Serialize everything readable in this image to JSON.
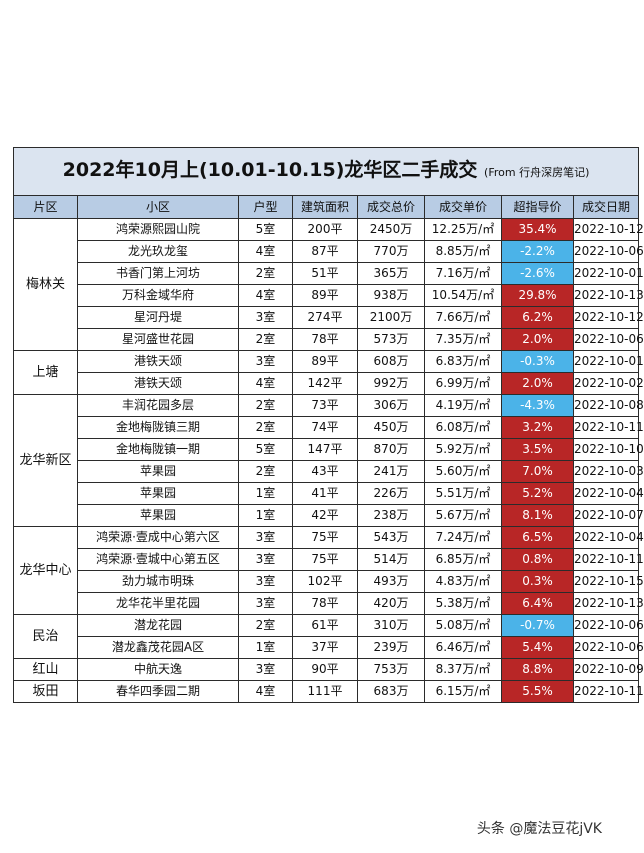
{
  "title": {
    "main": "2022年10月上(10.01-10.15)龙华区二手成交",
    "source": "(From 行舟深房笔记)"
  },
  "headers": [
    "片区",
    "小区",
    "户型",
    "建筑面积",
    "成交总价",
    "成交单价",
    "超指导价",
    "成交日期"
  ],
  "colors": {
    "positive": "#b82626",
    "negative": "#4bb3e8",
    "header_bg": "#b8cce4",
    "title_bg": "#dbe4f0"
  },
  "groups": [
    {
      "district": "梅林关",
      "rows": [
        {
          "community": "鸿荣源熙园山院",
          "layout": "5室",
          "area": "200平",
          "total": "2450万",
          "unit": "12.25万/㎡",
          "ratio": "35.4%",
          "date": "2022-10-12"
        },
        {
          "community": "龙光玖龙玺",
          "layout": "4室",
          "area": "87平",
          "total": "770万",
          "unit": "8.85万/㎡",
          "ratio": "-2.2%",
          "date": "2022-10-06"
        },
        {
          "community": "书香门第上河坊",
          "layout": "2室",
          "area": "51平",
          "total": "365万",
          "unit": "7.16万/㎡",
          "ratio": "-2.6%",
          "date": "2022-10-01"
        },
        {
          "community": "万科金域华府",
          "layout": "4室",
          "area": "89平",
          "total": "938万",
          "unit": "10.54万/㎡",
          "ratio": "29.8%",
          "date": "2022-10-13"
        },
        {
          "community": "星河丹堤",
          "layout": "3室",
          "area": "274平",
          "total": "2100万",
          "unit": "7.66万/㎡",
          "ratio": "6.2%",
          "date": "2022-10-12"
        },
        {
          "community": "星河盛世花园",
          "layout": "2室",
          "area": "78平",
          "total": "573万",
          "unit": "7.35万/㎡",
          "ratio": "2.0%",
          "date": "2022-10-06"
        }
      ]
    },
    {
      "district": "上塘",
      "rows": [
        {
          "community": "港铁天颂",
          "layout": "3室",
          "area": "89平",
          "total": "608万",
          "unit": "6.83万/㎡",
          "ratio": "-0.3%",
          "date": "2022-10-01"
        },
        {
          "community": "港铁天颂",
          "layout": "4室",
          "area": "142平",
          "total": "992万",
          "unit": "6.99万/㎡",
          "ratio": "2.0%",
          "date": "2022-10-02"
        }
      ]
    },
    {
      "district": "龙华新区",
      "rows": [
        {
          "community": "丰润花园多层",
          "layout": "2室",
          "area": "73平",
          "total": "306万",
          "unit": "4.19万/㎡",
          "ratio": "-4.3%",
          "date": "2022-10-08"
        },
        {
          "community": "金地梅陇镇三期",
          "layout": "2室",
          "area": "74平",
          "total": "450万",
          "unit": "6.08万/㎡",
          "ratio": "3.2%",
          "date": "2022-10-11"
        },
        {
          "community": "金地梅陇镇一期",
          "layout": "5室",
          "area": "147平",
          "total": "870万",
          "unit": "5.92万/㎡",
          "ratio": "3.5%",
          "date": "2022-10-10"
        },
        {
          "community": "苹果园",
          "layout": "2室",
          "area": "43平",
          "total": "241万",
          "unit": "5.60万/㎡",
          "ratio": "7.0%",
          "date": "2022-10-03"
        },
        {
          "community": "苹果园",
          "layout": "1室",
          "area": "41平",
          "total": "226万",
          "unit": "5.51万/㎡",
          "ratio": "5.2%",
          "date": "2022-10-04"
        },
        {
          "community": "苹果园",
          "layout": "1室",
          "area": "42平",
          "total": "238万",
          "unit": "5.67万/㎡",
          "ratio": "8.1%",
          "date": "2022-10-07"
        }
      ]
    },
    {
      "district": "龙华中心",
      "rows": [
        {
          "community": "鸿荣源·壹成中心第六区",
          "layout": "3室",
          "area": "75平",
          "total": "543万",
          "unit": "7.24万/㎡",
          "ratio": "6.5%",
          "date": "2022-10-04"
        },
        {
          "community": "鸿荣源·壹城中心第五区",
          "layout": "3室",
          "area": "75平",
          "total": "514万",
          "unit": "6.85万/㎡",
          "ratio": "0.8%",
          "date": "2022-10-11"
        },
        {
          "community": "劲力城市明珠",
          "layout": "3室",
          "area": "102平",
          "total": "493万",
          "unit": "4.83万/㎡",
          "ratio": "0.3%",
          "date": "2022-10-15"
        },
        {
          "community": "龙华花半里花园",
          "layout": "3室",
          "area": "78平",
          "total": "420万",
          "unit": "5.38万/㎡",
          "ratio": "6.4%",
          "date": "2022-10-13"
        }
      ]
    },
    {
      "district": "民治",
      "rows": [
        {
          "community": "潜龙花园",
          "layout": "2室",
          "area": "61平",
          "total": "310万",
          "unit": "5.08万/㎡",
          "ratio": "-0.7%",
          "date": "2022-10-06"
        },
        {
          "community": "潜龙鑫茂花园A区",
          "layout": "1室",
          "area": "37平",
          "total": "239万",
          "unit": "6.46万/㎡",
          "ratio": "5.4%",
          "date": "2022-10-06"
        }
      ]
    },
    {
      "district": "红山",
      "rows": [
        {
          "community": "中航天逸",
          "layout": "3室",
          "area": "90平",
          "total": "753万",
          "unit": "8.37万/㎡",
          "ratio": "8.8%",
          "date": "2022-10-09"
        }
      ]
    },
    {
      "district": "坂田",
      "rows": [
        {
          "community": "春华四季园二期",
          "layout": "4室",
          "area": "111平",
          "total": "683万",
          "unit": "6.15万/㎡",
          "ratio": "5.5%",
          "date": "2022-10-11"
        }
      ]
    }
  ],
  "watermark": "头条 @魔法豆花jVK"
}
